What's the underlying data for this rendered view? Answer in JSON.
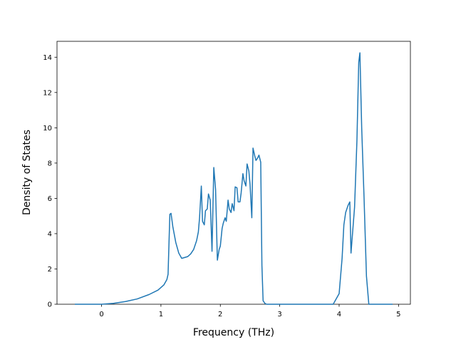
{
  "chart_data": {
    "type": "line",
    "title": "",
    "xlabel": "Frequency (THz)",
    "ylabel": "Density of States",
    "xlim": [
      -0.75,
      5.2
    ],
    "ylim": [
      0,
      14.9
    ],
    "xticks": [
      0,
      1,
      2,
      3,
      4,
      5
    ],
    "yticks": [
      0,
      2,
      4,
      6,
      8,
      10,
      12,
      14
    ],
    "grid": false,
    "legend": "none",
    "series": [
      {
        "color": "#1f77b4",
        "x": [
          -0.45,
          0.0,
          0.2,
          0.4,
          0.6,
          0.8,
          0.95,
          1.05,
          1.1,
          1.12,
          1.15,
          1.17,
          1.2,
          1.25,
          1.3,
          1.35,
          1.4,
          1.45,
          1.5,
          1.55,
          1.6,
          1.63,
          1.65,
          1.68,
          1.7,
          1.73,
          1.75,
          1.78,
          1.8,
          1.83,
          1.86,
          1.89,
          1.92,
          1.95,
          1.98,
          2.0,
          2.03,
          2.05,
          2.08,
          2.1,
          2.13,
          2.15,
          2.18,
          2.2,
          2.23,
          2.25,
          2.28,
          2.3,
          2.33,
          2.35,
          2.38,
          2.4,
          2.43,
          2.45,
          2.48,
          2.5,
          2.53,
          2.55,
          2.58,
          2.6,
          2.63,
          2.65,
          2.68,
          2.7,
          2.72,
          2.75,
          2.78,
          2.8,
          3.0,
          3.5,
          3.9,
          4.0,
          4.05,
          4.08,
          4.11,
          4.15,
          4.18,
          4.2,
          4.23,
          4.26,
          4.3,
          4.33,
          4.35,
          4.38,
          4.42,
          4.46,
          4.5,
          4.9
        ],
        "y": [
          0,
          0,
          0.05,
          0.15,
          0.3,
          0.55,
          0.8,
          1.1,
          1.4,
          1.7,
          5.1,
          5.15,
          4.4,
          3.5,
          2.9,
          2.6,
          2.65,
          2.7,
          2.85,
          3.1,
          3.6,
          4.1,
          4.9,
          6.7,
          4.7,
          4.5,
          5.3,
          5.4,
          6.25,
          5.9,
          3.0,
          7.75,
          6.5,
          2.5,
          3.1,
          3.3,
          4.3,
          4.6,
          4.9,
          4.7,
          5.9,
          5.4,
          5.2,
          5.7,
          5.3,
          6.65,
          6.6,
          5.8,
          5.8,
          6.3,
          7.4,
          7.0,
          6.7,
          7.95,
          7.55,
          6.8,
          4.9,
          8.85,
          8.4,
          8.15,
          8.3,
          8.45,
          8.05,
          2.2,
          0.2,
          0.05,
          0,
          0,
          0,
          0,
          0,
          0.6,
          2.6,
          4.5,
          5.2,
          5.6,
          5.8,
          2.9,
          4.2,
          5.5,
          9.3,
          13.7,
          14.25,
          10.0,
          6.0,
          1.6,
          0,
          0
        ]
      }
    ]
  }
}
